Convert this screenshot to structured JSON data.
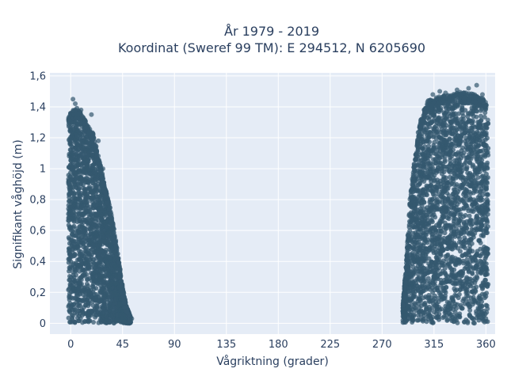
{
  "chart_data": {
    "type": "scatter",
    "title_line1": "År 1979 - 2019",
    "title_line2": "Koordinat (Sweref 99 TM): E 294512, N 6205690",
    "xlabel": "Vågriktning (grader)",
    "ylabel": "Signifikant våghöjd (m)",
    "xlim": [
      -18,
      368
    ],
    "ylim": [
      -0.07,
      1.62
    ],
    "x_ticks": [
      0,
      45,
      90,
      135,
      180,
      225,
      270,
      315,
      360
    ],
    "x_tick_labels": [
      "0",
      "45",
      "90",
      "135",
      "180",
      "225",
      "270",
      "315",
      "360"
    ],
    "y_ticks": [
      0,
      0.2,
      0.4,
      0.6,
      0.8,
      1.0,
      1.2,
      1.4,
      1.6
    ],
    "y_tick_labels": [
      "0",
      "0,2",
      "0,4",
      "0,6",
      "0,8",
      "1",
      "1,2",
      "1,4",
      "1,6"
    ],
    "grid": true,
    "colors": {
      "marker": "#34586f",
      "plot_background": "#e5ecf6",
      "grid": "#ffffff",
      "text": "#2a3f5f"
    },
    "clusters": [
      {
        "x_range": [
          -2,
          52
        ],
        "envelope": [
          [
            -2,
            1.33
          ],
          [
            0,
            1.36
          ],
          [
            5,
            1.4
          ],
          [
            10,
            1.35
          ],
          [
            15,
            1.28
          ],
          [
            20,
            1.22
          ],
          [
            25,
            1.05
          ],
          [
            30,
            0.88
          ],
          [
            35,
            0.72
          ],
          [
            40,
            0.5
          ],
          [
            44,
            0.28
          ],
          [
            48,
            0.12
          ],
          [
            52,
            0.04
          ]
        ]
      },
      {
        "x_range": [
          288,
          362
        ],
        "envelope": [
          [
            288,
            0.12
          ],
          [
            291,
            0.4
          ],
          [
            294,
            0.8
          ],
          [
            298,
            1.05
          ],
          [
            302,
            1.28
          ],
          [
            306,
            1.38
          ],
          [
            310,
            1.44
          ],
          [
            320,
            1.47
          ],
          [
            330,
            1.48
          ],
          [
            340,
            1.5
          ],
          [
            350,
            1.48
          ],
          [
            356,
            1.46
          ],
          [
            360,
            1.44
          ],
          [
            362,
            1.3
          ]
        ]
      }
    ],
    "outliers": [
      {
        "x": 2,
        "y": 1.45
      },
      {
        "x": 4,
        "y": 1.42
      },
      {
        "x": 9,
        "y": 1.38
      },
      {
        "x": 18,
        "y": 1.35
      },
      {
        "x": 24,
        "y": 1.18
      },
      {
        "x": 28,
        "y": 1.0
      },
      {
        "x": 33,
        "y": 0.78
      },
      {
        "x": 38,
        "y": 0.55
      },
      {
        "x": 43,
        "y": 0.35
      },
      {
        "x": 47,
        "y": 0.1
      },
      {
        "x": 53,
        "y": 0.03
      },
      {
        "x": 314,
        "y": 1.48
      },
      {
        "x": 320,
        "y": 1.5
      },
      {
        "x": 325,
        "y": 1.49
      },
      {
        "x": 335,
        "y": 1.51
      },
      {
        "x": 345,
        "y": 1.52
      },
      {
        "x": 352,
        "y": 1.54
      },
      {
        "x": 357,
        "y": 1.48
      }
    ]
  }
}
